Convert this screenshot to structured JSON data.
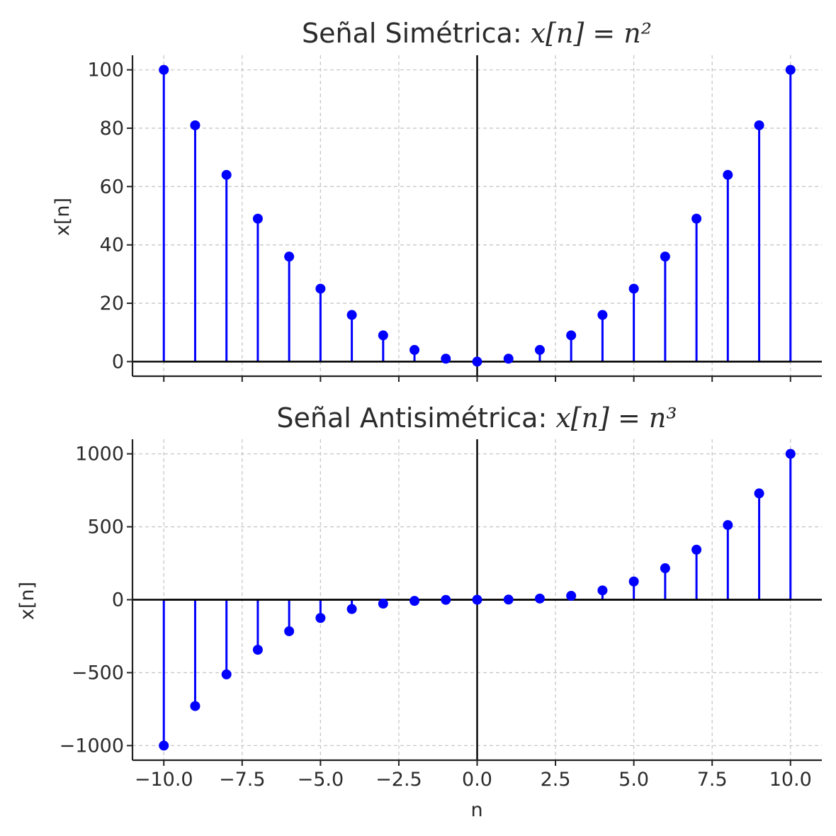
{
  "colors": {
    "stem": "#0000ff",
    "marker": "#0000ff",
    "baseline": "#000000",
    "grid": "#c8c8c8"
  },
  "chart_data": [
    {
      "type": "stem",
      "title": "Señal Simétrica: ",
      "title_math": "x[n] = n²",
      "xlabel": "",
      "ylabel": "x[n]",
      "xlim": [
        -11,
        11
      ],
      "ylim": [
        -5,
        105
      ],
      "xticks": [
        -10,
        -7.5,
        -5,
        -2.5,
        0,
        2.5,
        5,
        7.5,
        10
      ],
      "xtick_labels_visible": false,
      "yticks": [
        0,
        20,
        40,
        60,
        80,
        100
      ],
      "ytick_labels": [
        "0",
        "20",
        "40",
        "60",
        "80",
        "100"
      ],
      "grid": true,
      "x": [
        -10,
        -9,
        -8,
        -7,
        -6,
        -5,
        -4,
        -3,
        -2,
        -1,
        0,
        1,
        2,
        3,
        4,
        5,
        6,
        7,
        8,
        9,
        10
      ],
      "y": [
        100,
        81,
        64,
        49,
        36,
        25,
        16,
        9,
        4,
        1,
        0,
        1,
        4,
        9,
        16,
        25,
        36,
        49,
        64,
        81,
        100
      ]
    },
    {
      "type": "stem",
      "title": "Señal Antisimétrica: ",
      "title_math": "x[n] = n³",
      "xlabel": "n",
      "ylabel": "x[n]",
      "xlim": [
        -11,
        11
      ],
      "ylim": [
        -1100,
        1100
      ],
      "xticks": [
        -10,
        -7.5,
        -5,
        -2.5,
        0,
        2.5,
        5,
        7.5,
        10
      ],
      "xtick_labels": [
        "−10.0",
        "−7.5",
        "−5.0",
        "−2.5",
        "0.0",
        "2.5",
        "5.0",
        "7.5",
        "10.0"
      ],
      "xtick_labels_visible": true,
      "yticks": [
        -1000,
        -500,
        0,
        500,
        1000
      ],
      "ytick_labels": [
        "−1000",
        "−500",
        "0",
        "500",
        "1000"
      ],
      "grid": true,
      "x": [
        -10,
        -9,
        -8,
        -7,
        -6,
        -5,
        -4,
        -3,
        -2,
        -1,
        0,
        1,
        2,
        3,
        4,
        5,
        6,
        7,
        8,
        9,
        10
      ],
      "y": [
        -1000,
        -729,
        -512,
        -343,
        -216,
        -125,
        -64,
        -27,
        -8,
        -1,
        0,
        1,
        8,
        27,
        64,
        125,
        216,
        343,
        512,
        729,
        1000
      ]
    }
  ]
}
